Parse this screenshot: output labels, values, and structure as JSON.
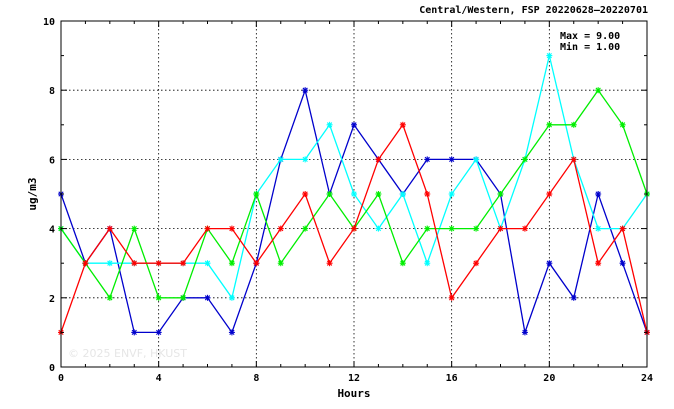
{
  "chart_data": {
    "type": "line",
    "title": "Central/Western, FSP 20220628–20220701",
    "xlabel": "Hours",
    "ylabel": "ug/m3",
    "xlim": [
      0,
      24
    ],
    "ylim": [
      0,
      10
    ],
    "x_ticks": [
      "0",
      "4",
      "8",
      "12",
      "16",
      "20",
      "24"
    ],
    "y_ticks": [
      "0",
      "2",
      "4",
      "6",
      "8",
      "10"
    ],
    "grid": "dotted, at labeled ticks",
    "marker": "asterisk",
    "stats": {
      "max": "Max = 9.00",
      "min": "Min = 1.00"
    },
    "watermark": "© 2025 ENVF, HKUST",
    "x": [
      0,
      1,
      2,
      3,
      4,
      5,
      6,
      7,
      8,
      9,
      10,
      11,
      12,
      13,
      14,
      15,
      16,
      17,
      18,
      19,
      20,
      21,
      22,
      23,
      24
    ],
    "series": [
      {
        "color": "#0000cc",
        "values": [
          5,
          3,
          4,
          1,
          1,
          2,
          2,
          1,
          3,
          6,
          8,
          5,
          7,
          6,
          5,
          6,
          6,
          6,
          5,
          1,
          3,
          2,
          5,
          3,
          1
        ]
      },
      {
        "color": "#00ffff",
        "values": [
          4,
          3,
          3,
          3,
          3,
          3,
          3,
          2,
          5,
          6,
          6,
          7,
          5,
          4,
          5,
          3,
          5,
          6,
          4,
          6,
          9,
          6,
          4,
          4,
          5
        ]
      },
      {
        "color": "#00ee00",
        "values": [
          4,
          3,
          2,
          4,
          2,
          2,
          4,
          3,
          5,
          3,
          4,
          5,
          4,
          5,
          3,
          4,
          4,
          4,
          5,
          6,
          7,
          7,
          8,
          7,
          5
        ]
      },
      {
        "color": "#ff0000",
        "values": [
          1,
          3,
          4,
          3,
          3,
          3,
          4,
          4,
          3,
          4,
          5,
          3,
          4,
          6,
          7,
          5,
          2,
          3,
          4,
          4,
          5,
          6,
          3,
          4,
          1
        ]
      }
    ]
  }
}
